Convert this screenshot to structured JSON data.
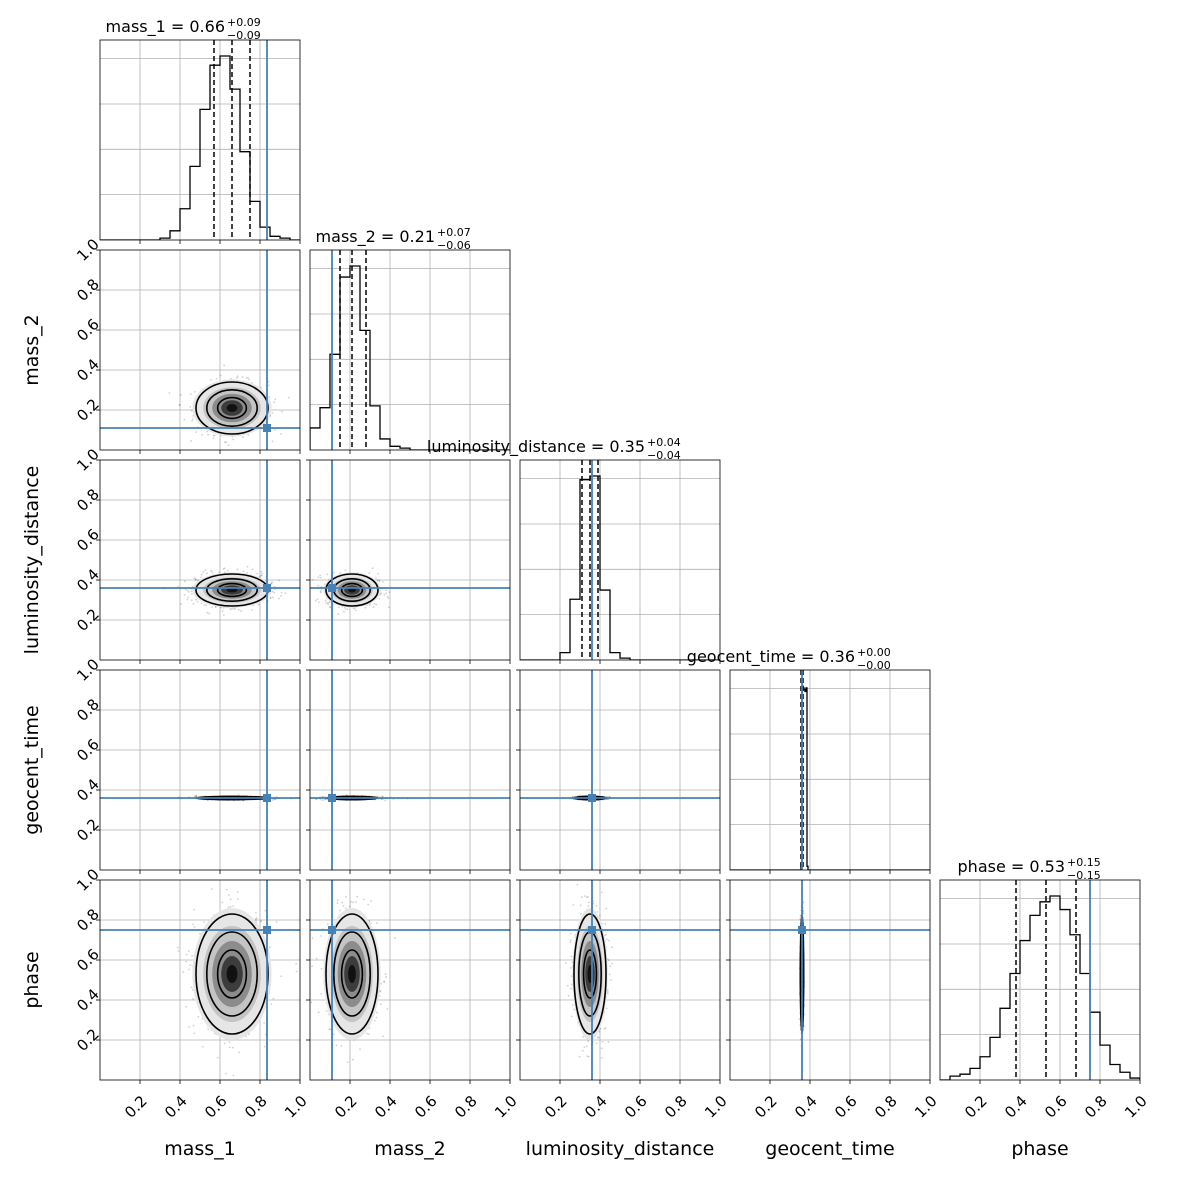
{
  "chart_data": {
    "type": "corner",
    "parameters": [
      "mass_1",
      "mass_2",
      "luminosity_distance",
      "geocent_time",
      "phase"
    ],
    "axis_labels": [
      "mass_1",
      "mass_2",
      "luminosity_distance",
      "geocent_time",
      "phase"
    ],
    "ylabel_parameters": [
      "mass_2",
      "luminosity_distance",
      "geocent_time",
      "phase"
    ],
    "axis_range": [
      0,
      1
    ],
    "tick_values": [
      0.2,
      0.4,
      0.6,
      0.8,
      1.0
    ],
    "x_tick_labels": [
      "0.2",
      "0.4",
      "0.6",
      "0.8",
      "1.0"
    ],
    "y_tick_labels": [
      "0.2",
      "0.4",
      "0.6",
      "0.8",
      "1.0"
    ],
    "grid": true,
    "colors": {
      "truth": "#4682b4",
      "hist": "#000000",
      "grid": "#b0b0b0",
      "points": "#000000"
    },
    "titles": [
      {
        "param": "mass_1",
        "label": "mass_1 = 0.66",
        "plus": "+0.09",
        "minus": "−0.09"
      },
      {
        "param": "mass_2",
        "label": "mass_2 = 0.21",
        "plus": "+0.07",
        "minus": "−0.06"
      },
      {
        "param": "luminosity_distance",
        "label": "luminosity_distance = 0.35",
        "plus": "+0.04",
        "minus": "−0.04"
      },
      {
        "param": "geocent_time",
        "label": "geocent_time = 0.36",
        "plus": "+0.00",
        "minus": "−0.00"
      },
      {
        "param": "phase",
        "label": "phase = 0.53",
        "plus": "+0.15",
        "minus": "−0.15"
      }
    ],
    "medians": [
      0.66,
      0.21,
      0.35,
      0.36,
      0.53
    ],
    "quantiles": [
      [
        0.57,
        0.66,
        0.75
      ],
      [
        0.15,
        0.21,
        0.28
      ],
      [
        0.31,
        0.35,
        0.39
      ],
      [
        0.355,
        0.36,
        0.365
      ],
      [
        0.38,
        0.53,
        0.68
      ]
    ],
    "sigmas": [
      0.09,
      0.065,
      0.04,
      0.004,
      0.15
    ],
    "truths": [
      0.835,
      0.11,
      0.36,
      0.36,
      0.75
    ],
    "histograms": [
      {
        "param": "mass_1",
        "bins": [
          0.3,
          0.35,
          0.4,
          0.45,
          0.5,
          0.55,
          0.6,
          0.65,
          0.7,
          0.75,
          0.8,
          0.85,
          0.9,
          0.95,
          1.0
        ],
        "counts": [
          0.01,
          0.05,
          0.17,
          0.4,
          0.71,
          0.95,
          1.0,
          0.82,
          0.48,
          0.21,
          0.07,
          0.02,
          0.01,
          0.0
        ]
      },
      {
        "param": "mass_2",
        "bins": [
          0.0,
          0.05,
          0.1,
          0.15,
          0.2,
          0.25,
          0.3,
          0.35,
          0.4,
          0.45,
          0.5
        ],
        "counts": [
          0.12,
          0.23,
          0.52,
          0.94,
          1.0,
          0.65,
          0.24,
          0.06,
          0.02,
          0.01
        ]
      },
      {
        "param": "luminosity_distance",
        "bins": [
          0.2,
          0.25,
          0.3,
          0.35,
          0.4,
          0.45,
          0.5,
          0.55
        ],
        "counts": [
          0.04,
          0.33,
          0.98,
          1.0,
          0.38,
          0.04,
          0.01
        ]
      },
      {
        "param": "geocent_time",
        "bins": [
          0.355,
          0.36,
          0.365,
          0.37,
          0.375,
          0.38,
          0.385,
          0.39
        ],
        "counts": [
          0.03,
          1.0,
          0.99,
          0.98,
          0.97,
          0.99,
          0.02
        ]
      },
      {
        "param": "phase",
        "bins": [
          0.05,
          0.1,
          0.15,
          0.2,
          0.25,
          0.3,
          0.35,
          0.4,
          0.45,
          0.5,
          0.55,
          0.6,
          0.65,
          0.7,
          0.75,
          0.8,
          0.85,
          0.9,
          0.95,
          1.0
        ],
        "counts": [
          0.02,
          0.03,
          0.06,
          0.12,
          0.22,
          0.37,
          0.55,
          0.72,
          0.85,
          0.92,
          0.95,
          0.88,
          0.75,
          0.55,
          0.35,
          0.18,
          0.08,
          0.04,
          0.01
        ]
      }
    ]
  }
}
